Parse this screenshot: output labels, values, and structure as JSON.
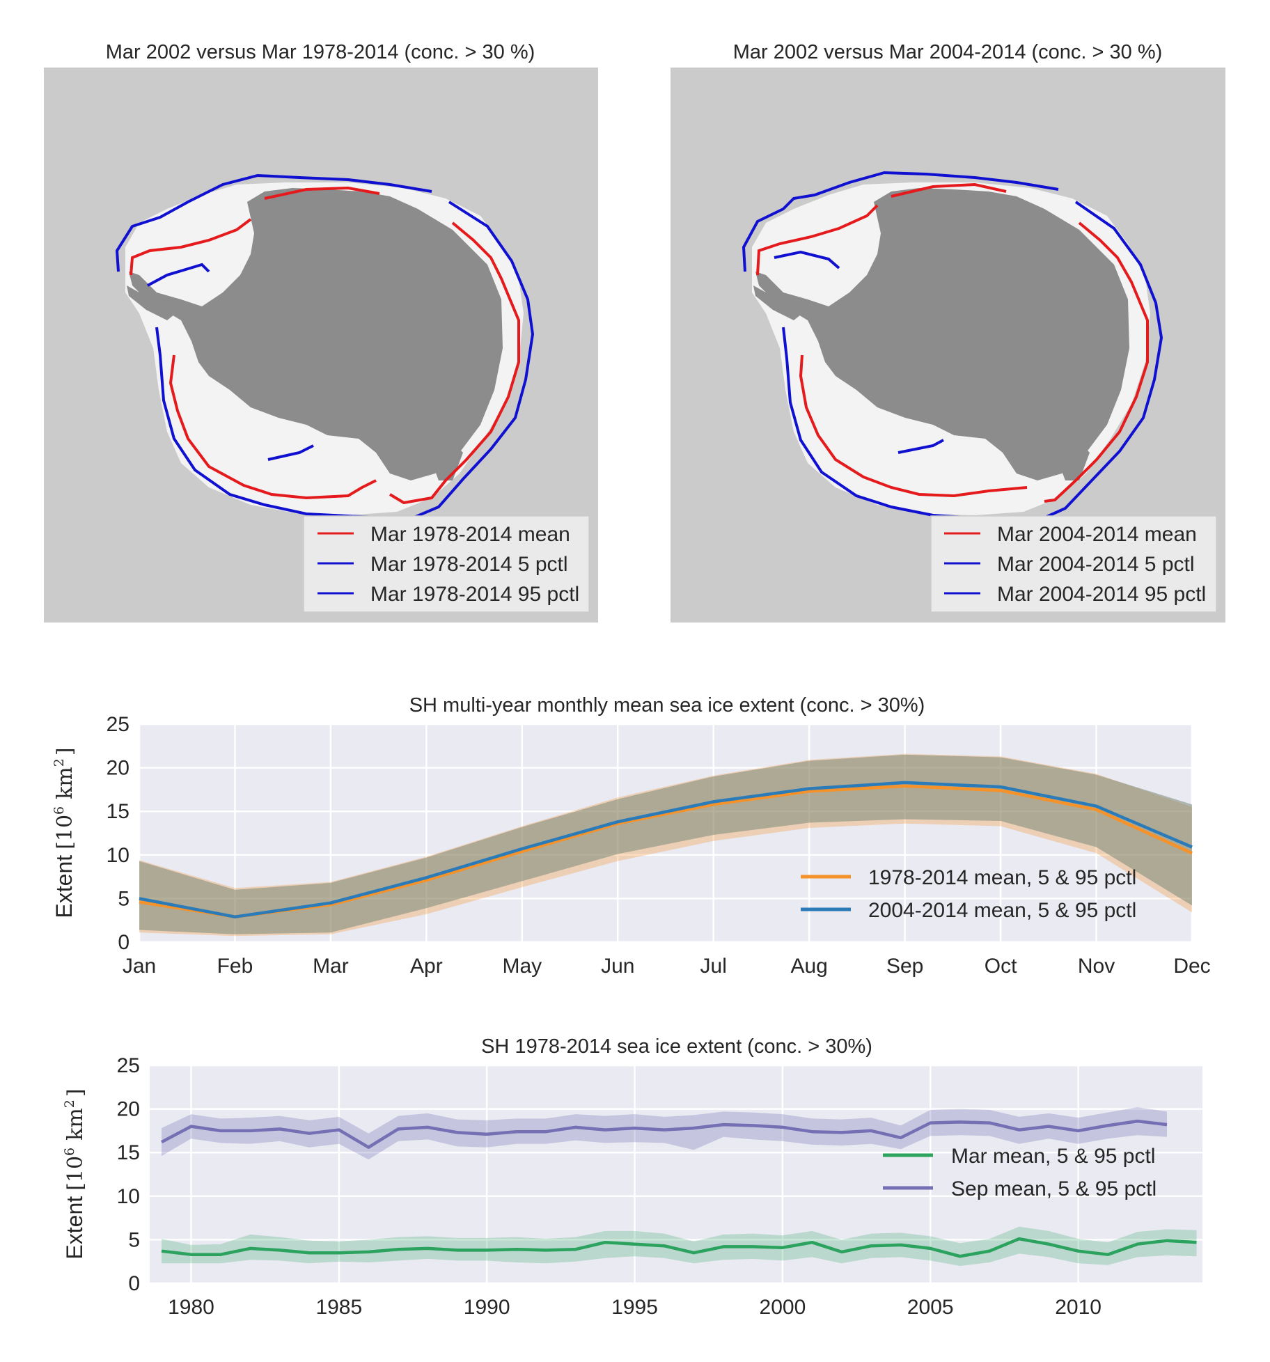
{
  "maps": {
    "left": {
      "title": "Mar 2002 versus Mar 1978-2014 (conc. > 30 %)",
      "legend": [
        "Mar 1978-2014 mean",
        "Mar 1978-2014 5 pctl",
        "Mar 1978-2014 95 pctl"
      ]
    },
    "right": {
      "title": "Mar 2002 versus Mar 2004-2014 (conc. > 30 %)",
      "legend": [
        "Mar 2004-2014 mean",
        "Mar 2004-2014 5 pctl",
        "Mar 2004-2014 95 pctl"
      ]
    }
  },
  "colors": {
    "mean_line": "#e41a1c",
    "pctl_line": "#1010d0",
    "ocean": "#cbcbcb",
    "continent": "#8c8c8c",
    "ice": "#f3f3f3",
    "orange": "#f5922a",
    "blue": "#2b7bb9",
    "green": "#2ca25f",
    "purple": "#7570b3",
    "axes_bg": "#eaeaf2"
  },
  "chart_data": [
    {
      "type": "line",
      "title": "SH multi-year monthly mean sea ice extent (conc. > 30%)",
      "ylabel_text": "Extent",
      "ylabel_unit": "km",
      "ylabel_pow": "10",
      "ylabel_exp": "6",
      "ylabel_exp2": "2",
      "ylim": [
        0,
        25
      ],
      "yticks": [
        "0",
        "5",
        "10",
        "15",
        "20",
        "25"
      ],
      "categories": [
        "Jan",
        "Feb",
        "Mar",
        "Apr",
        "May",
        "Jun",
        "Jul",
        "Aug",
        "Sep",
        "Oct",
        "Nov",
        "Dec"
      ],
      "grid": true,
      "legend_position": "lower right",
      "series": [
        {
          "name": "1978-2014 mean, 5 & 95 pctl",
          "color": "orange",
          "mean": [
            4.6,
            2.9,
            4.3,
            7.1,
            10.4,
            13.6,
            15.8,
            17.3,
            17.9,
            17.4,
            15.2,
            10.2
          ],
          "p5": [
            1.1,
            0.7,
            0.9,
            3.2,
            6.3,
            9.3,
            11.6,
            13.1,
            13.6,
            13.3,
            10.2,
            3.4
          ],
          "p95": [
            9.4,
            6.2,
            6.9,
            9.8,
            13.3,
            16.6,
            19.1,
            20.9,
            21.6,
            21.3,
            19.3,
            15.5
          ]
        },
        {
          "name": "2004-2014 mean, 5 & 95 pctl",
          "color": "blue",
          "mean": [
            5.0,
            2.9,
            4.5,
            7.4,
            10.7,
            13.8,
            16.1,
            17.6,
            18.3,
            17.8,
            15.6,
            10.9
          ],
          "p5": [
            1.4,
            0.9,
            1.1,
            3.9,
            7.0,
            10.1,
            12.3,
            13.7,
            14.1,
            13.9,
            10.9,
            4.2
          ],
          "p95": [
            9.3,
            6.0,
            6.8,
            9.7,
            13.2,
            16.4,
            19.0,
            20.8,
            21.5,
            21.2,
            19.2,
            15.8
          ]
        }
      ]
    },
    {
      "type": "line",
      "title": "SH 1978-2014 sea ice extent (conc. > 30%)",
      "ylabel_text": "Extent",
      "ylabel_unit": "km",
      "ylabel_pow": "10",
      "ylabel_exp": "6",
      "ylabel_exp2": "2",
      "ylim": [
        0,
        25
      ],
      "xlim": [
        1978.6,
        2014.2
      ],
      "yticks": [
        "0",
        "5",
        "10",
        "15",
        "20",
        "25"
      ],
      "xticks": [
        "1980",
        "1985",
        "1990",
        "1995",
        "2000",
        "2005",
        "2010"
      ],
      "grid": true,
      "legend_position": "center right",
      "series": [
        {
          "name": "Mar mean, 5 & 95 pctl",
          "color": "green",
          "x": [
            1979,
            1980,
            1981,
            1982,
            1983,
            1984,
            1985,
            1986,
            1987,
            1988,
            1989,
            1990,
            1991,
            1992,
            1993,
            1994,
            1995,
            1996,
            1997,
            1998,
            1999,
            2000,
            2001,
            2002,
            2003,
            2004,
            2005,
            2006,
            2007,
            2008,
            2009,
            2010,
            2011,
            2012,
            2013,
            2014
          ],
          "mean": [
            3.7,
            3.3,
            3.3,
            4.0,
            3.8,
            3.5,
            3.5,
            3.6,
            3.9,
            4.0,
            3.8,
            3.8,
            3.9,
            3.8,
            3.9,
            4.7,
            4.5,
            4.3,
            3.5,
            4.2,
            4.2,
            4.1,
            4.7,
            3.6,
            4.3,
            4.4,
            4.0,
            3.1,
            3.7,
            5.1,
            4.5,
            3.7,
            3.3,
            4.5,
            4.9,
            4.7
          ],
          "p5": [
            2.3,
            2.3,
            2.3,
            2.7,
            2.6,
            2.3,
            2.5,
            2.4,
            2.6,
            2.8,
            2.6,
            2.6,
            2.4,
            2.3,
            2.5,
            2.9,
            3.1,
            2.9,
            2.3,
            2.7,
            2.8,
            2.6,
            3.0,
            2.3,
            2.9,
            3.0,
            2.6,
            2.0,
            2.4,
            3.4,
            3.0,
            2.3,
            2.1,
            3.0,
            3.2,
            3.1
          ],
          "p95": [
            5.1,
            4.4,
            4.5,
            5.6,
            5.3,
            4.9,
            4.8,
            5.0,
            5.3,
            5.4,
            5.2,
            5.2,
            5.3,
            5.1,
            5.3,
            6.0,
            6.0,
            5.7,
            4.8,
            5.6,
            5.7,
            5.5,
            6.0,
            5.0,
            5.7,
            5.8,
            5.4,
            4.6,
            5.1,
            6.5,
            6.0,
            5.1,
            4.7,
            5.9,
            6.2,
            6.1
          ]
        },
        {
          "name": "Sep mean, 5 & 95 pctl",
          "color": "purple",
          "x": [
            1979,
            1980,
            1981,
            1982,
            1983,
            1984,
            1985,
            1986,
            1987,
            1988,
            1989,
            1990,
            1991,
            1992,
            1993,
            1994,
            1995,
            1996,
            1997,
            1998,
            1999,
            2000,
            2001,
            2002,
            2003,
            2004,
            2005,
            2006,
            2007,
            2008,
            2009,
            2010,
            2011,
            2012,
            2013
          ],
          "mean": [
            16.2,
            18.0,
            17.5,
            17.5,
            17.7,
            17.2,
            17.6,
            15.6,
            17.7,
            17.9,
            17.3,
            17.1,
            17.4,
            17.4,
            17.9,
            17.6,
            17.8,
            17.6,
            17.8,
            18.2,
            18.1,
            17.9,
            17.4,
            17.3,
            17.5,
            16.7,
            18.4,
            18.5,
            18.4,
            17.6,
            18.0,
            17.5,
            18.1,
            18.6,
            18.2
          ],
          "p5": [
            14.6,
            16.6,
            16.1,
            16.0,
            16.3,
            15.6,
            16.0,
            14.2,
            16.3,
            16.5,
            15.7,
            15.6,
            16.0,
            16.0,
            16.4,
            16.1,
            16.2,
            16.1,
            15.3,
            16.8,
            16.5,
            16.3,
            15.9,
            15.8,
            16.0,
            15.4,
            16.9,
            17.0,
            16.9,
            16.0,
            16.6,
            16.0,
            16.6,
            17.0,
            16.8
          ],
          "p95": [
            17.8,
            19.4,
            18.9,
            19.0,
            19.2,
            18.7,
            19.1,
            17.2,
            19.2,
            19.5,
            18.8,
            18.7,
            18.9,
            18.9,
            19.4,
            19.2,
            19.4,
            19.1,
            19.3,
            19.7,
            19.6,
            19.4,
            18.9,
            18.8,
            19.0,
            18.1,
            19.9,
            20.0,
            19.9,
            19.1,
            19.5,
            19.0,
            19.6,
            20.2,
            19.7
          ]
        }
      ]
    }
  ]
}
